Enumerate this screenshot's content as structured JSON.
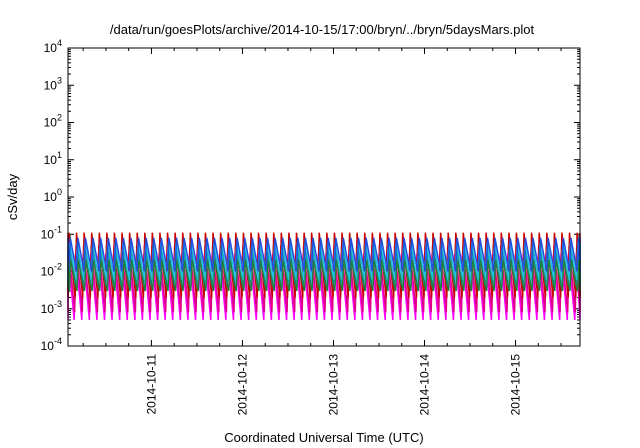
{
  "chart_data": {
    "type": "line",
    "title": "/data/run/goesPlots/archive/2014-10-15/17:00/bryn/../bryn/5daysMars.plot",
    "xlabel": "Coordinated Universal Time (UTC)",
    "ylabel": "cSv/day",
    "xlim": [
      "2014-10-10T02:00",
      "2014-10-15T17:00"
    ],
    "ylim": [
      0.0001,
      10000
    ],
    "yscale": "log",
    "grid": false,
    "legend": "none",
    "x_ticks": [
      "2014-10-11",
      "2014-10-12",
      "2014-10-13",
      "2014-10-14",
      "2014-10-15"
    ],
    "y_ticks": [
      {
        "base": "10",
        "exp": "-4"
      },
      {
        "base": "10",
        "exp": "-3"
      },
      {
        "base": "10",
        "exp": "-2"
      },
      {
        "base": "10",
        "exp": "-1"
      },
      {
        "base": "10",
        "exp": "0"
      },
      {
        "base": "10",
        "exp": "1"
      },
      {
        "base": "10",
        "exp": "2"
      },
      {
        "base": "10",
        "exp": "3"
      },
      {
        "base": "10",
        "exp": "4"
      }
    ],
    "series": [
      {
        "color": "#ff00ff",
        "peak": 0.03,
        "trough": 0.0005,
        "cycles_per_day": 12
      },
      {
        "color": "#e0008a",
        "peak": 0.05,
        "trough": 0.0008,
        "cycles_per_day": 12
      },
      {
        "color": "#c80000",
        "peak": 0.11,
        "trough": 0.002,
        "cycles_per_day": 12
      },
      {
        "color": "#00a0c0",
        "peak": 0.04,
        "trough": 0.004,
        "cycles_per_day": 12
      },
      {
        "color": "#20c0e0",
        "peak": 0.06,
        "trough": 0.006,
        "cycles_per_day": 12
      },
      {
        "color": "#2050e0",
        "peak": 0.08,
        "trough": 0.01,
        "cycles_per_day": 12
      },
      {
        "color": "#208040",
        "peak": 0.02,
        "trough": 0.003,
        "cycles_per_day": 12
      }
    ]
  }
}
